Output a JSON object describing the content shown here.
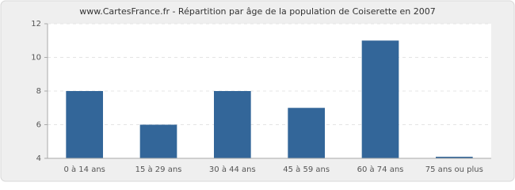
{
  "chart_data": {
    "type": "bar",
    "title": "www.CartesFrance.fr - Répartition par âge de la population de Coiserette en 2007",
    "categories": [
      "0 à 14 ans",
      "15 à 29 ans",
      "30 à 44 ans",
      "45 à 59 ans",
      "60 à 74 ans",
      "75 ans ou plus"
    ],
    "values": [
      8,
      6,
      8,
      7,
      11,
      4
    ],
    "color": "#336699",
    "ylim": [
      4,
      12
    ],
    "yticks": [
      4,
      6,
      8,
      10,
      12
    ],
    "grid": true
  }
}
